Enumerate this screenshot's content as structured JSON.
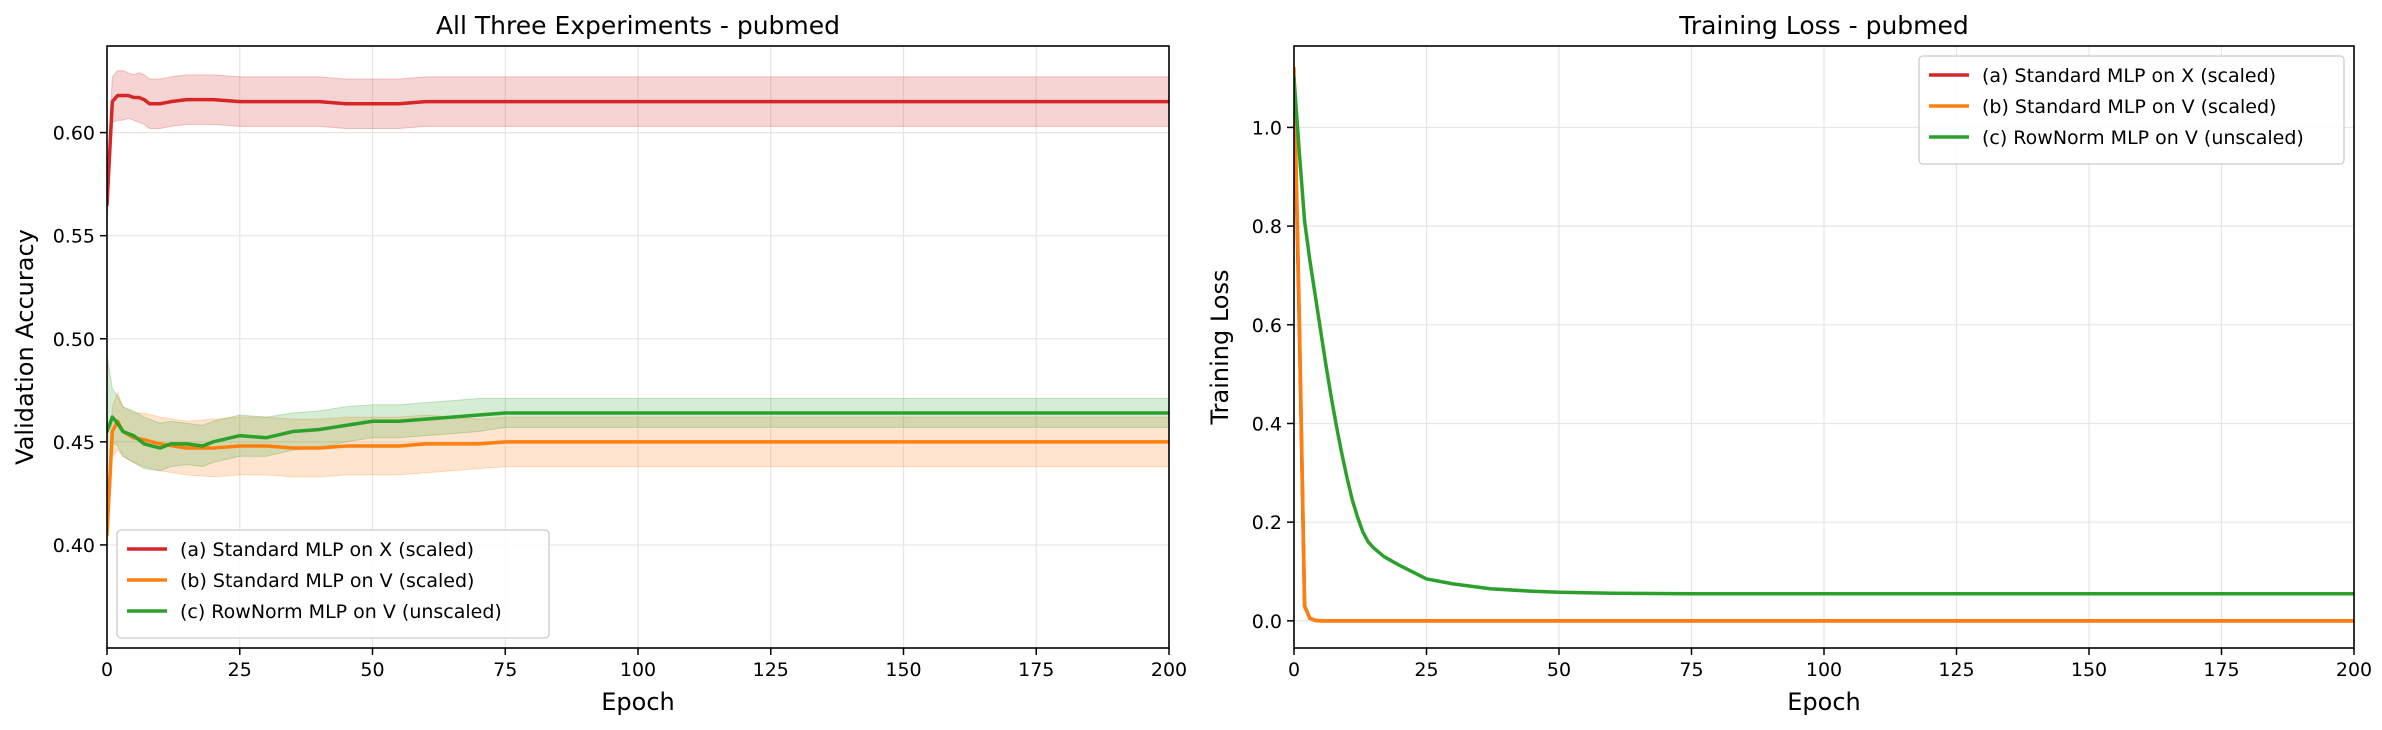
{
  "chart_data": [
    {
      "type": "line",
      "title": "All Three Experiments - pubmed",
      "xlabel": "Epoch",
      "ylabel": "Validation Accuracy",
      "xlim": [
        0,
        200
      ],
      "ylim": [
        0.35,
        0.642
      ],
      "xticks": [
        0,
        25,
        50,
        75,
        100,
        125,
        150,
        175,
        200
      ],
      "yticks": [
        0.4,
        0.45,
        0.5,
        0.55,
        0.6
      ],
      "ytick_decimals": 2,
      "grid": true,
      "legend_position": "lower-left",
      "series": [
        {
          "name": "(a) Standard MLP on X (scaled)",
          "color": "#d62728",
          "x": [
            0,
            1,
            2,
            3,
            4,
            5,
            6,
            7,
            8,
            10,
            12,
            15,
            18,
            20,
            25,
            30,
            35,
            40,
            45,
            50,
            55,
            60,
            65,
            70,
            75,
            100,
            125,
            150,
            175,
            200
          ],
          "y": [
            0.565,
            0.615,
            0.618,
            0.618,
            0.618,
            0.617,
            0.617,
            0.616,
            0.614,
            0.614,
            0.615,
            0.616,
            0.616,
            0.616,
            0.615,
            0.615,
            0.615,
            0.615,
            0.614,
            0.614,
            0.614,
            0.615,
            0.615,
            0.615,
            0.615,
            0.615,
            0.615,
            0.615,
            0.615,
            0.615
          ],
          "band_lower": [
            0.555,
            0.605,
            0.606,
            0.606,
            0.607,
            0.606,
            0.605,
            0.604,
            0.602,
            0.602,
            0.603,
            0.604,
            0.604,
            0.604,
            0.603,
            0.603,
            0.603,
            0.603,
            0.602,
            0.602,
            0.602,
            0.603,
            0.603,
            0.603,
            0.603,
            0.603,
            0.603,
            0.603,
            0.603,
            0.603
          ],
          "band_upper": [
            0.575,
            0.627,
            0.63,
            0.63,
            0.629,
            0.628,
            0.629,
            0.628,
            0.626,
            0.626,
            0.627,
            0.628,
            0.628,
            0.628,
            0.627,
            0.627,
            0.627,
            0.627,
            0.626,
            0.626,
            0.626,
            0.627,
            0.627,
            0.627,
            0.627,
            0.627,
            0.627,
            0.627,
            0.627,
            0.627
          ]
        },
        {
          "name": "(b) Standard MLP on V (scaled)",
          "color": "#ff7f0e",
          "x": [
            0,
            1,
            2,
            3,
            5,
            7,
            10,
            15,
            20,
            25,
            30,
            35,
            40,
            45,
            50,
            55,
            60,
            65,
            70,
            75,
            100,
            125,
            150,
            175,
            200
          ],
          "y": [
            0.405,
            0.455,
            0.46,
            0.455,
            0.452,
            0.451,
            0.449,
            0.447,
            0.447,
            0.448,
            0.448,
            0.447,
            0.447,
            0.448,
            0.448,
            0.448,
            0.449,
            0.449,
            0.449,
            0.45,
            0.45,
            0.45,
            0.45,
            0.45,
            0.45
          ],
          "band_lower": [
            0.395,
            0.443,
            0.446,
            0.443,
            0.44,
            0.438,
            0.436,
            0.434,
            0.433,
            0.434,
            0.434,
            0.433,
            0.433,
            0.434,
            0.434,
            0.434,
            0.435,
            0.436,
            0.437,
            0.438,
            0.438,
            0.438,
            0.438,
            0.438,
            0.438
          ],
          "band_upper": [
            0.415,
            0.467,
            0.474,
            0.467,
            0.464,
            0.464,
            0.462,
            0.46,
            0.461,
            0.462,
            0.462,
            0.461,
            0.461,
            0.462,
            0.462,
            0.462,
            0.463,
            0.462,
            0.461,
            0.462,
            0.462,
            0.462,
            0.462,
            0.462,
            0.462
          ]
        },
        {
          "name": "(c) RowNorm MLP on V (unscaled)",
          "color": "#2ca02c",
          "x": [
            0,
            1,
            2,
            3,
            5,
            7,
            10,
            12,
            15,
            18,
            20,
            25,
            30,
            35,
            40,
            45,
            50,
            55,
            60,
            65,
            70,
            75,
            100,
            125,
            150,
            175,
            200
          ],
          "y": [
            0.455,
            0.462,
            0.459,
            0.455,
            0.453,
            0.449,
            0.447,
            0.449,
            0.449,
            0.448,
            0.45,
            0.453,
            0.452,
            0.455,
            0.456,
            0.458,
            0.46,
            0.46,
            0.461,
            0.462,
            0.463,
            0.464,
            0.464,
            0.464,
            0.464,
            0.464,
            0.464
          ],
          "band_lower": [
            0.425,
            0.45,
            0.448,
            0.443,
            0.44,
            0.437,
            0.436,
            0.438,
            0.439,
            0.438,
            0.44,
            0.443,
            0.443,
            0.446,
            0.447,
            0.45,
            0.452,
            0.452,
            0.453,
            0.454,
            0.455,
            0.457,
            0.457,
            0.457,
            0.457,
            0.457,
            0.457
          ],
          "band_upper": [
            0.492,
            0.476,
            0.472,
            0.467,
            0.465,
            0.462,
            0.459,
            0.46,
            0.459,
            0.458,
            0.46,
            0.463,
            0.462,
            0.464,
            0.465,
            0.467,
            0.468,
            0.468,
            0.469,
            0.47,
            0.471,
            0.471,
            0.471,
            0.471,
            0.471,
            0.471,
            0.471
          ]
        }
      ]
    },
    {
      "type": "line",
      "title": "Training Loss - pubmed",
      "xlabel": "Epoch",
      "ylabel": "Training Loss",
      "xlim": [
        0,
        200
      ],
      "ylim": [
        -0.055,
        1.165
      ],
      "xticks": [
        0,
        25,
        50,
        75,
        100,
        125,
        150,
        175,
        200
      ],
      "yticks": [
        0.0,
        0.2,
        0.4,
        0.6,
        0.8,
        1.0
      ],
      "ytick_decimals": 1,
      "grid": true,
      "legend_position": "top-right",
      "series": [
        {
          "name": "(a) Standard MLP on X (scaled)",
          "color": "#d62728",
          "x": [
            0,
            1,
            2,
            3,
            4,
            5,
            10,
            25,
            50,
            75,
            100,
            125,
            150,
            175,
            200
          ],
          "y": [
            1.1,
            0.6,
            0.03,
            0.005,
            0.001,
            0.0,
            0.0,
            0.0,
            0.0,
            0.0,
            0.0,
            0.0,
            0.0,
            0.0,
            0.0
          ]
        },
        {
          "name": "(b) Standard MLP on V (scaled)",
          "color": "#ff7f0e",
          "x": [
            0,
            1,
            2,
            3,
            4,
            5,
            10,
            25,
            50,
            75,
            100,
            125,
            150,
            175,
            200
          ],
          "y": [
            1.12,
            0.62,
            0.03,
            0.005,
            0.001,
            0.0,
            0.0,
            0.0,
            0.0,
            0.0,
            0.0,
            0.0,
            0.0,
            0.0,
            0.0
          ]
        },
        {
          "name": "(c) RowNorm MLP on V (unscaled)",
          "color": "#2ca02c",
          "x": [
            0,
            1,
            2,
            3,
            4,
            5,
            6,
            7,
            8,
            9,
            10,
            11,
            12,
            13,
            14,
            15,
            17,
            20,
            25,
            30,
            37,
            45,
            50,
            60,
            75,
            100,
            125,
            150,
            175,
            200
          ],
          "y": [
            1.1,
            0.95,
            0.81,
            0.73,
            0.66,
            0.59,
            0.52,
            0.455,
            0.395,
            0.34,
            0.29,
            0.245,
            0.21,
            0.18,
            0.16,
            0.148,
            0.13,
            0.112,
            0.085,
            0.075,
            0.065,
            0.06,
            0.058,
            0.056,
            0.055,
            0.055,
            0.055,
            0.055,
            0.055,
            0.055
          ]
        }
      ]
    }
  ]
}
